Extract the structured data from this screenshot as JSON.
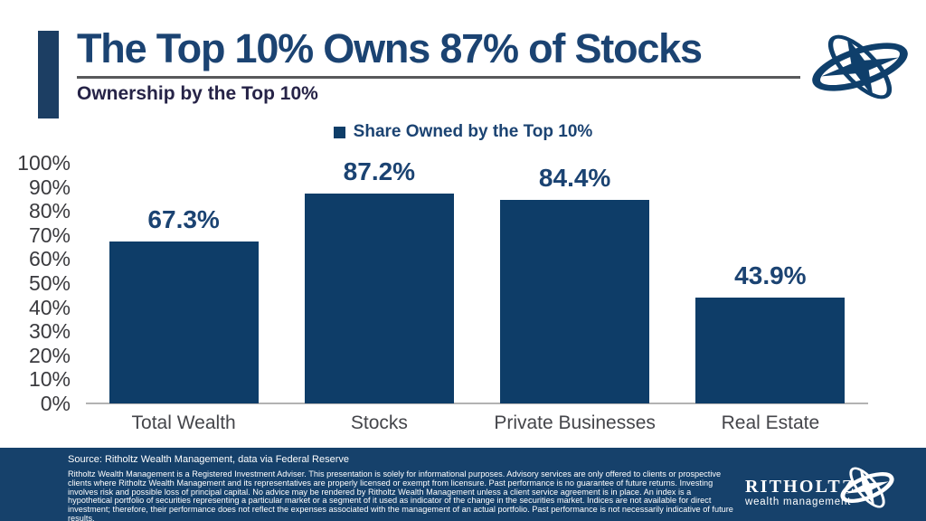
{
  "header": {
    "title": "The Top 10% Owns 87% of Stocks",
    "subtitle": "Ownership by the Top 10%",
    "logo_icon": "gyroscope-compass-icon"
  },
  "chart_data": {
    "type": "bar",
    "title": "The Top 10% Owns 87% of Stocks",
    "subtitle": "Ownership by the Top 10%",
    "legend": "Share Owned by the Top 10%",
    "legend_position": "top-center",
    "categories": [
      "Total Wealth",
      "Stocks",
      "Private Businesses",
      "Real Estate"
    ],
    "values": [
      67.3,
      87.2,
      84.4,
      43.9
    ],
    "value_labels": [
      "67.3%",
      "87.2%",
      "84.4%",
      "43.9%"
    ],
    "xlabel": "",
    "ylabel": "",
    "ylim": [
      0,
      100
    ],
    "y_ticks": [
      "100%",
      "90%",
      "80%",
      "70%",
      "60%",
      "50%",
      "40%",
      "30%",
      "20%",
      "10%",
      "0%"
    ],
    "grid": false,
    "bar_color": "#0e3d68"
  },
  "footer": {
    "source": "Source: Ritholtz Wealth Management, data via Federal Reserve",
    "disclaimer": "Ritholtz Wealth Management is a Registered Investment Adviser. This presentation is solely for informational purposes. Advisory services are only offered to clients or prospective clients where Ritholtz Wealth Management and its representatives are properly licensed or exempt from licensure. Past performance is no guarantee of future returns. Investing involves risk and possible loss of principal capital. No advice may be rendered by Ritholtz Wealth Management unless a client service agreement is in place. An index is a hypothetical portfolio of securities representing a particular market or a segment of it used as indicator of the change in the securities market. Indices are not available for direct investment; therefore, their performance does not reflect the expenses associated with the management of an actual portfolio. Past performance is not necessarily indicative of future results.",
    "brand": {
      "wordmark": "RITHOLTZ",
      "tagline": "wealth management",
      "logo_icon": "gyroscope-compass-icon"
    }
  },
  "colors": {
    "brand_navy": "#0e3d68",
    "title_navy": "#1b4372",
    "subtitle_navy": "#262347",
    "accent_bar_navy": "#1c3e63",
    "footer_background": "#16416b",
    "underline_gray": "#58595b",
    "axis_text_gray": "#44454a",
    "baseline_gray": "#b3b3b3",
    "footer_text": "#ffffff"
  }
}
